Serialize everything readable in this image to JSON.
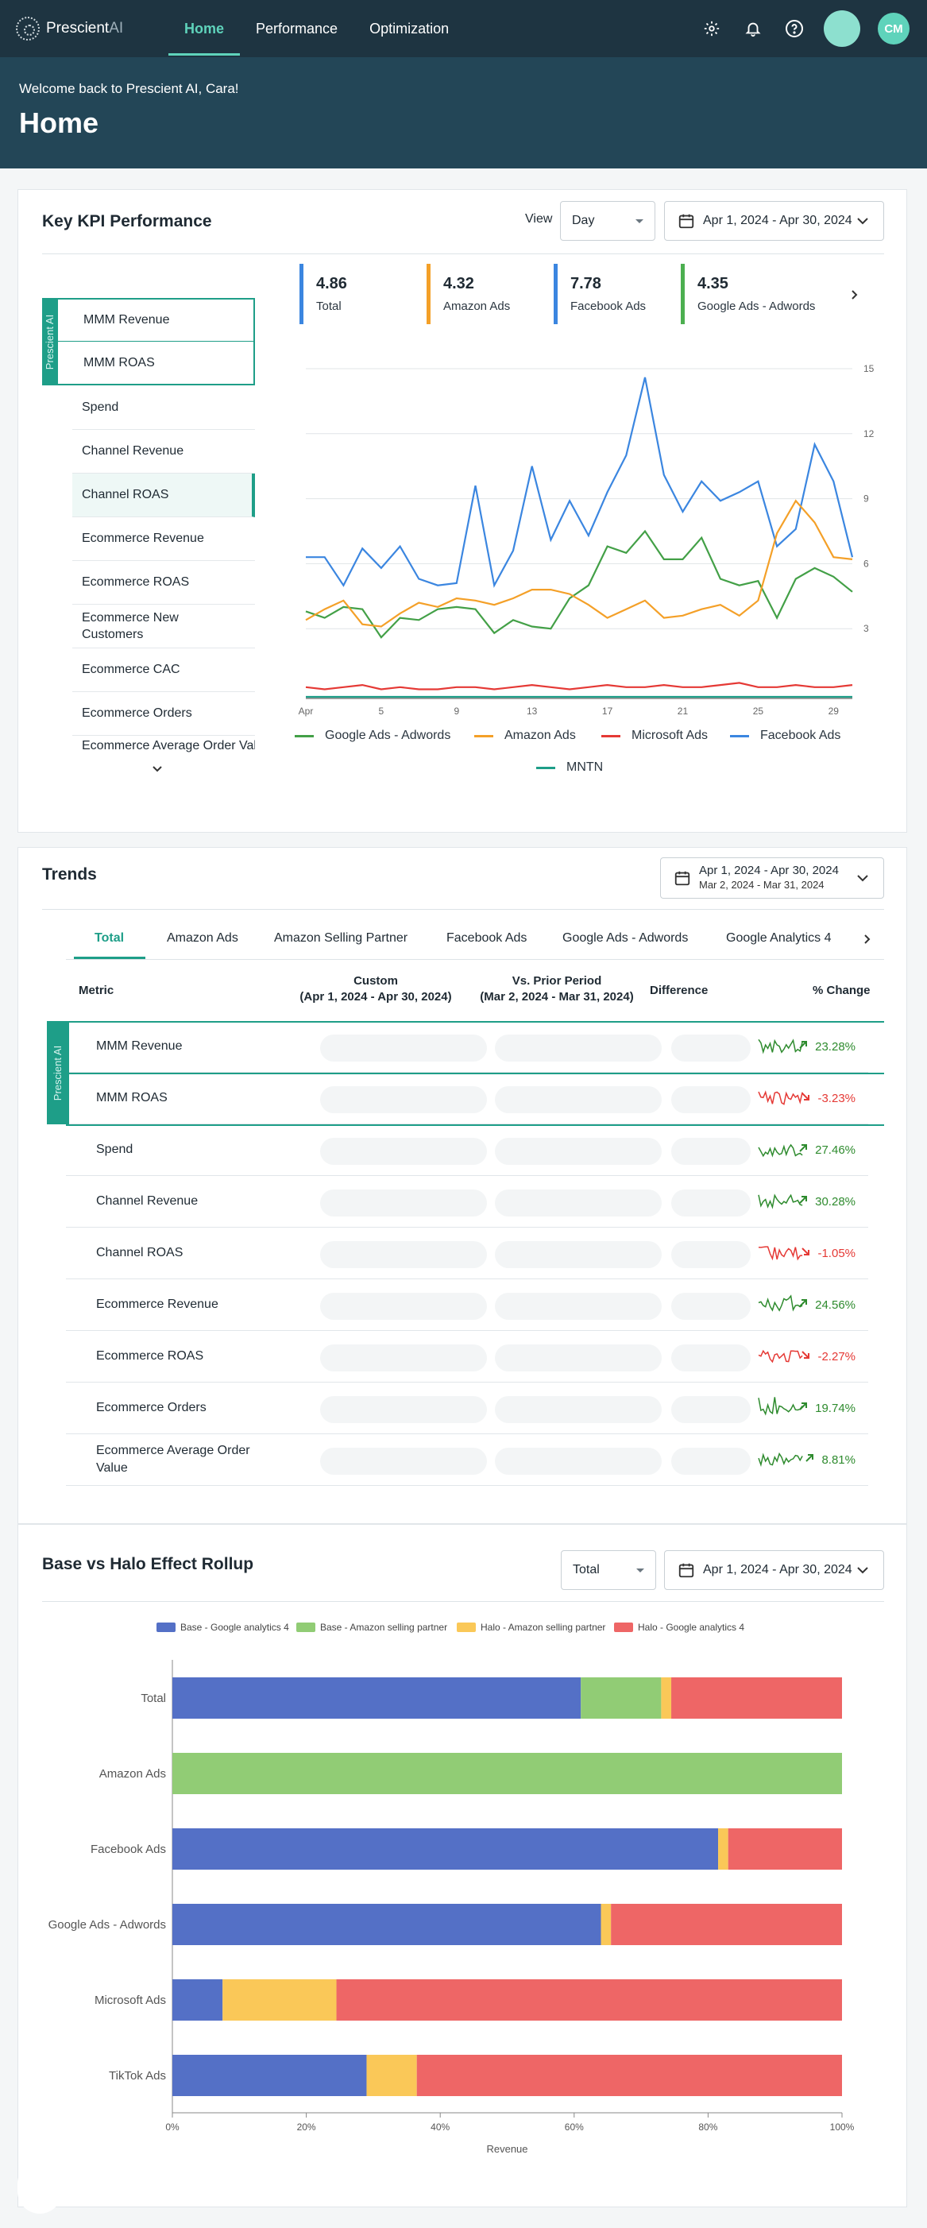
{
  "app": {
    "logo_text": "Prescient",
    "logo_suffix": "AI",
    "nav_tabs": [
      "Home",
      "Performance",
      "Optimization"
    ],
    "active_tab": "Home",
    "user_initials": "CM"
  },
  "header": {
    "welcome": "Welcome back to Prescient AI, Cara!",
    "title": "Home"
  },
  "kpi": {
    "title": "Key KPI Performance",
    "view_label": "View",
    "view_value": "Day",
    "date_range": "Apr 1, 2024 - Apr 30, 2024",
    "prescient_tag": "Prescient AI",
    "metrics": [
      "MMM Revenue",
      "MMM ROAS",
      "Spend",
      "Channel Revenue",
      "Channel ROAS",
      "Ecommerce Revenue",
      "Ecommerce ROAS",
      "Ecommerce New Customers",
      "Ecommerce CAC",
      "Ecommerce Orders",
      "Ecommerce Average Order Value"
    ],
    "selected_metric": "Channel ROAS",
    "stats": [
      {
        "value": "4.86",
        "label": "Total",
        "color": "#3b86e0"
      },
      {
        "value": "4.32",
        "label": "Amazon Ads",
        "color": "#f4a028"
      },
      {
        "value": "7.78",
        "label": "Facebook Ads",
        "color": "#3b86e0"
      },
      {
        "value": "4.35",
        "label": "Google Ads - Adwords",
        "color": "#4caf50"
      }
    ],
    "legend": [
      {
        "name": "Google Ads - Adwords",
        "color": "#43a047"
      },
      {
        "name": "Amazon Ads",
        "color": "#f4a028"
      },
      {
        "name": "Microsoft Ads",
        "color": "#e53935"
      },
      {
        "name": "Facebook Ads",
        "color": "#3b86e0"
      },
      {
        "name": "MNTN",
        "color": "#1e9e88"
      }
    ]
  },
  "chart_data": [
    {
      "type": "line",
      "x": [
        1,
        2,
        3,
        4,
        5,
        6,
        7,
        8,
        9,
        10,
        11,
        12,
        13,
        14,
        15,
        16,
        17,
        18,
        19,
        20,
        21,
        22,
        23,
        24,
        25,
        26,
        27,
        28,
        29,
        30
      ],
      "x_tick_labels": [
        "Apr",
        "5",
        "9",
        "13",
        "17",
        "21",
        "25",
        "29"
      ],
      "y_ticks": [
        3,
        6,
        9,
        12,
        15
      ],
      "ylim": [
        0,
        15
      ],
      "series": [
        {
          "name": "Facebook Ads",
          "color": "#3b86e0",
          "values": [
            6.3,
            6.3,
            5.0,
            6.7,
            5.8,
            6.8,
            5.3,
            5.0,
            5.1,
            9.6,
            5.0,
            6.6,
            10.5,
            7.1,
            8.9,
            7.3,
            9.3,
            11.0,
            14.6,
            10.1,
            8.4,
            9.8,
            8.9,
            9.3,
            9.8,
            6.8,
            7.6,
            11.5,
            9.8,
            6.3
          ]
        },
        {
          "name": "Google Ads - Adwords",
          "color": "#43a047",
          "values": [
            3.8,
            3.5,
            4.0,
            3.9,
            2.6,
            3.5,
            3.4,
            3.9,
            4.0,
            3.9,
            2.8,
            3.4,
            3.1,
            3.0,
            4.4,
            5.0,
            6.8,
            6.5,
            7.5,
            6.2,
            6.2,
            7.2,
            5.3,
            5.0,
            5.2,
            3.5,
            5.3,
            5.8,
            5.4,
            4.7
          ]
        },
        {
          "name": "Amazon Ads",
          "color": "#f4a028",
          "values": [
            3.4,
            3.9,
            4.3,
            3.2,
            3.1,
            3.7,
            4.2,
            4.0,
            4.4,
            4.3,
            4.1,
            4.4,
            4.8,
            4.8,
            4.6,
            4.1,
            3.5,
            3.9,
            4.3,
            3.5,
            3.6,
            3.9,
            4.1,
            3.6,
            4.3,
            7.4,
            8.9,
            7.9,
            6.3,
            6.2
          ]
        },
        {
          "name": "Microsoft Ads",
          "color": "#e53935",
          "values": [
            0.3,
            0.2,
            0.3,
            0.4,
            0.2,
            0.3,
            0.2,
            0.2,
            0.3,
            0.3,
            0.2,
            0.3,
            0.4,
            0.3,
            0.2,
            0.3,
            0.4,
            0.3,
            0.3,
            0.4,
            0.3,
            0.3,
            0.4,
            0.5,
            0.3,
            0.3,
            0.4,
            0.3,
            0.3,
            0.4
          ]
        },
        {
          "name": "MNTN",
          "color": "#1e9e88",
          "values": [
            0.0,
            0.0,
            0.0,
            0.0,
            0.0,
            0.0,
            0.0,
            0.0,
            0.0,
            0.0,
            0.0,
            0.0,
            0.0,
            0.0,
            0.0,
            0.0,
            0.0,
            0.0,
            0.0,
            0.0,
            0.0,
            0.0,
            0.0,
            0.0,
            0.0,
            0.0,
            0.0,
            0.0,
            0.0,
            0.0
          ]
        }
      ]
    },
    {
      "type": "bar",
      "orientation": "horizontal-stacked-percent",
      "categories": [
        "Total",
        "Amazon Ads",
        "Facebook Ads",
        "Google Ads - Adwords",
        "Microsoft Ads",
        "TikTok Ads"
      ],
      "series": [
        {
          "name": "Base - Google analytics 4",
          "color": "#5470c6",
          "values": [
            61,
            0,
            81.5,
            64,
            7.5,
            29
          ]
        },
        {
          "name": "Base - Amazon selling partner",
          "color": "#91cc75",
          "values": [
            12,
            100,
            0,
            0,
            0,
            0
          ]
        },
        {
          "name": "Halo - Amazon selling partner",
          "color": "#fac858",
          "values": [
            1.5,
            0,
            1.5,
            1.5,
            17,
            7.5
          ]
        },
        {
          "name": "Halo - Google analytics 4",
          "color": "#ee6666",
          "values": [
            25.5,
            0,
            17,
            34.5,
            75.5,
            63.5
          ]
        }
      ],
      "x_ticks": [
        "0%",
        "20%",
        "40%",
        "60%",
        "80%",
        "100%"
      ],
      "xlabel": "Revenue",
      "xlim": [
        0,
        100
      ]
    }
  ],
  "trends": {
    "title": "Trends",
    "date_primary": "Apr 1, 2024 - Apr 30, 2024",
    "date_compare": "Mar 2, 2024 - Mar 31, 2024",
    "tabs": [
      "Total",
      "Amazon Ads",
      "Amazon Selling Partner",
      "Facebook Ads",
      "Google Ads - Adwords",
      "Google Analytics 4"
    ],
    "active_tab": "Total",
    "headers": {
      "metric": "Metric",
      "custom_line1": "Custom",
      "custom_line2": "(Apr 1, 2024 - Apr 30, 2024)",
      "prior_line1": "Vs. Prior Period",
      "prior_line2": "(Mar 2, 2024 - Mar 31, 2024)",
      "difference": "Difference",
      "pct_change": "% Change"
    },
    "prescient_tag": "Prescient AI",
    "rows": [
      {
        "metric": "MMM Revenue",
        "change": "23.28%",
        "direction": "up"
      },
      {
        "metric": "MMM ROAS",
        "change": "-3.23%",
        "direction": "down"
      },
      {
        "metric": "Spend",
        "change": "27.46%",
        "direction": "up"
      },
      {
        "metric": "Channel Revenue",
        "change": "30.28%",
        "direction": "up"
      },
      {
        "metric": "Channel ROAS",
        "change": "-1.05%",
        "direction": "down"
      },
      {
        "metric": "Ecommerce Revenue",
        "change": "24.56%",
        "direction": "up"
      },
      {
        "metric": "Ecommerce ROAS",
        "change": "-2.27%",
        "direction": "down"
      },
      {
        "metric": "Ecommerce Orders",
        "change": "19.74%",
        "direction": "up"
      },
      {
        "metric": "Ecommerce Average Order Value",
        "change": "8.81%",
        "direction": "up"
      }
    ],
    "colors": {
      "up": "#2e8b2e",
      "down": "#e53935"
    }
  },
  "halo": {
    "title": "Base vs Halo Effect Rollup",
    "select_value": "Total",
    "date_range": "Apr 1, 2024 - Apr 30, 2024"
  }
}
